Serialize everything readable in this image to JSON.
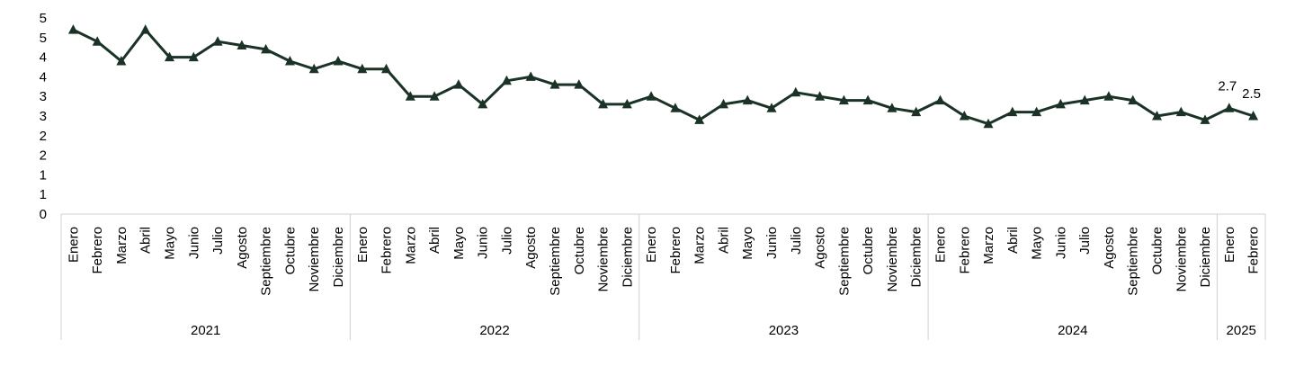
{
  "chart_data": {
    "type": "line",
    "title": "",
    "xlabel": "",
    "ylabel": "",
    "ylim": [
      0,
      5
    ],
    "y_tick_labels": [
      "0",
      "1",
      "1",
      "2",
      "2",
      "3",
      "3",
      "4",
      "4",
      "5",
      "5"
    ],
    "grid": false,
    "legend": "none",
    "line_color": "#1a3326",
    "marker": "triangle",
    "groups": [
      {
        "year": "2021",
        "months": [
          "Enero",
          "Febrero",
          "Marzo",
          "Abril",
          "Mayo",
          "Junio",
          "Julio",
          "Agosto",
          "Septiembre",
          "Octubre",
          "Noviembre",
          "Diciembre"
        ]
      },
      {
        "year": "2022",
        "months": [
          "Enero",
          "Febrero",
          "Marzo",
          "Abril",
          "Mayo",
          "Junio",
          "Julio",
          "Agosto",
          "Septiembre",
          "Octubre",
          "Noviembre",
          "Diciembre"
        ]
      },
      {
        "year": "2023",
        "months": [
          "Enero",
          "Febrero",
          "Marzo",
          "Abril",
          "Mayo",
          "Junio",
          "Julio",
          "Agosto",
          "Septiembre",
          "Octubre",
          "Noviembre",
          "Diciembre"
        ]
      },
      {
        "year": "2024",
        "months": [
          "Enero",
          "Febrero",
          "Marzo",
          "Abril",
          "Mayo",
          "Junio",
          "Julio",
          "Agosto",
          "Septiembre",
          "Octubre",
          "Noviembre",
          "Diciembre"
        ]
      },
      {
        "year": "2025",
        "months": [
          "Enero",
          "Febrero"
        ]
      }
    ],
    "series": [
      {
        "values": [
          4.7,
          4.4,
          3.9,
          4.7,
          4.0,
          4.0,
          4.4,
          4.3,
          4.2,
          3.9,
          3.7,
          3.9,
          3.7,
          3.7,
          3.0,
          3.0,
          3.3,
          2.8,
          3.4,
          3.5,
          3.3,
          3.3,
          2.8,
          2.8,
          3.0,
          2.7,
          2.4,
          2.8,
          2.9,
          2.7,
          3.1,
          3.0,
          2.9,
          2.9,
          2.7,
          2.6,
          2.9,
          2.5,
          2.3,
          2.6,
          2.6,
          2.8,
          2.9,
          3.0,
          2.9,
          2.5,
          2.6,
          2.4,
          2.7,
          2.5
        ],
        "data_labels": [
          {
            "index": 48,
            "text": "2.7"
          },
          {
            "index": 49,
            "text": "2.5"
          }
        ]
      }
    ]
  }
}
